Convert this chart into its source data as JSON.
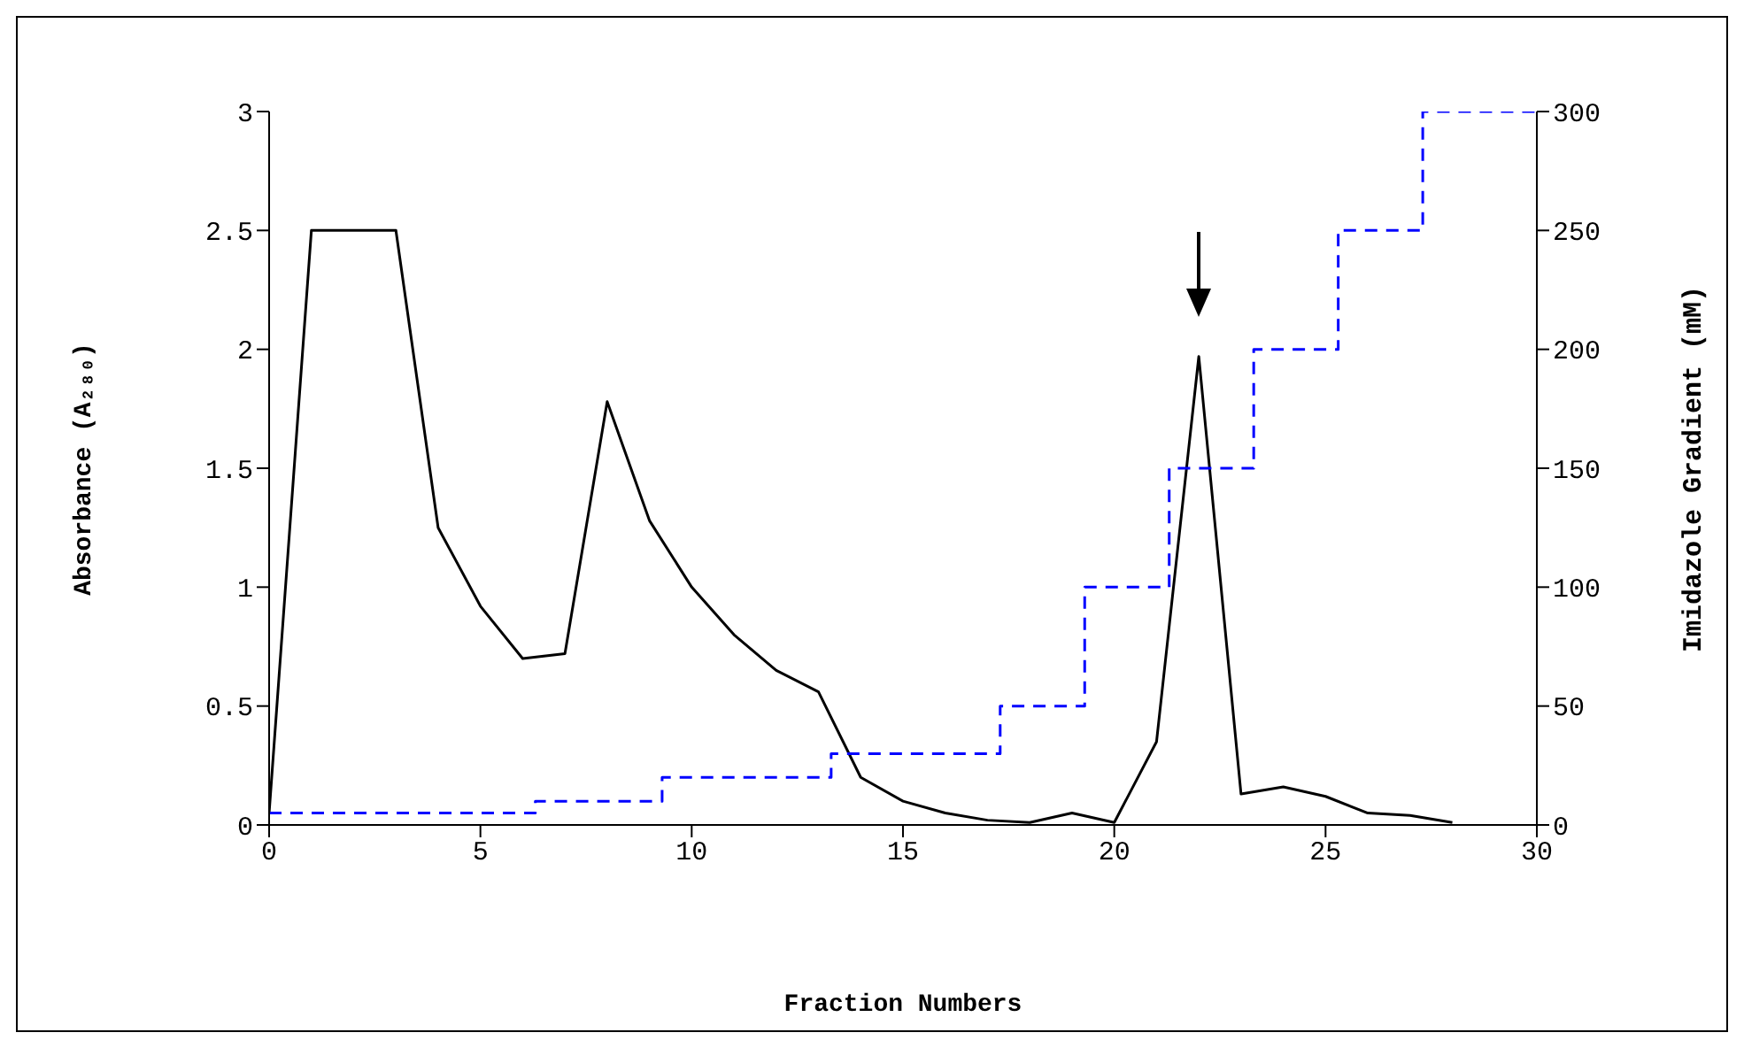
{
  "chart_data": {
    "type": "line",
    "xlabel": "Fraction Numbers",
    "ylabel": "Absorbance (A₂₈₀)",
    "y2label": "Imidazole Gradient (mM)",
    "xlim": [
      0,
      30
    ],
    "xticks": [
      0,
      5,
      10,
      15,
      20,
      25,
      30
    ],
    "ylim": [
      0,
      3
    ],
    "yticks": [
      0,
      0.5,
      1,
      1.5,
      2,
      2.5,
      3
    ],
    "y2lim": [
      0,
      300
    ],
    "y2ticks": [
      0,
      50,
      100,
      150,
      200,
      250,
      300
    ],
    "marker": "none",
    "series": [
      {
        "color": "#000000",
        "line_style": "solid",
        "x": [
          0,
          1,
          2,
          3,
          4,
          5,
          6,
          7,
          8,
          9,
          10,
          11,
          12,
          13,
          14,
          15,
          16,
          17,
          18,
          19,
          20,
          21,
          22,
          23,
          24,
          25,
          26,
          27,
          28
        ],
        "values": [
          0.05,
          2.5,
          2.5,
          2.5,
          1.25,
          0.92,
          0.7,
          0.72,
          1.78,
          1.28,
          1.0,
          0.8,
          0.65,
          0.56,
          0.2,
          0.1,
          0.05,
          0.02,
          0.01,
          0.05,
          0.01,
          0.35,
          1.97,
          0.13,
          0.16,
          0.12,
          0.05,
          0.04,
          0.01
        ]
      },
      {
        "type": "step",
        "axis": "y2",
        "color": "#0000ff",
        "line_style": "dashed",
        "x": [
          0,
          6.3,
          9.3,
          13.3,
          17.3,
          19.3,
          21.3,
          23.3,
          25.3,
          27.3,
          30
        ],
        "values": [
          5,
          10,
          20,
          30,
          50,
          100,
          150,
          200,
          250,
          300,
          300
        ]
      }
    ]
  }
}
